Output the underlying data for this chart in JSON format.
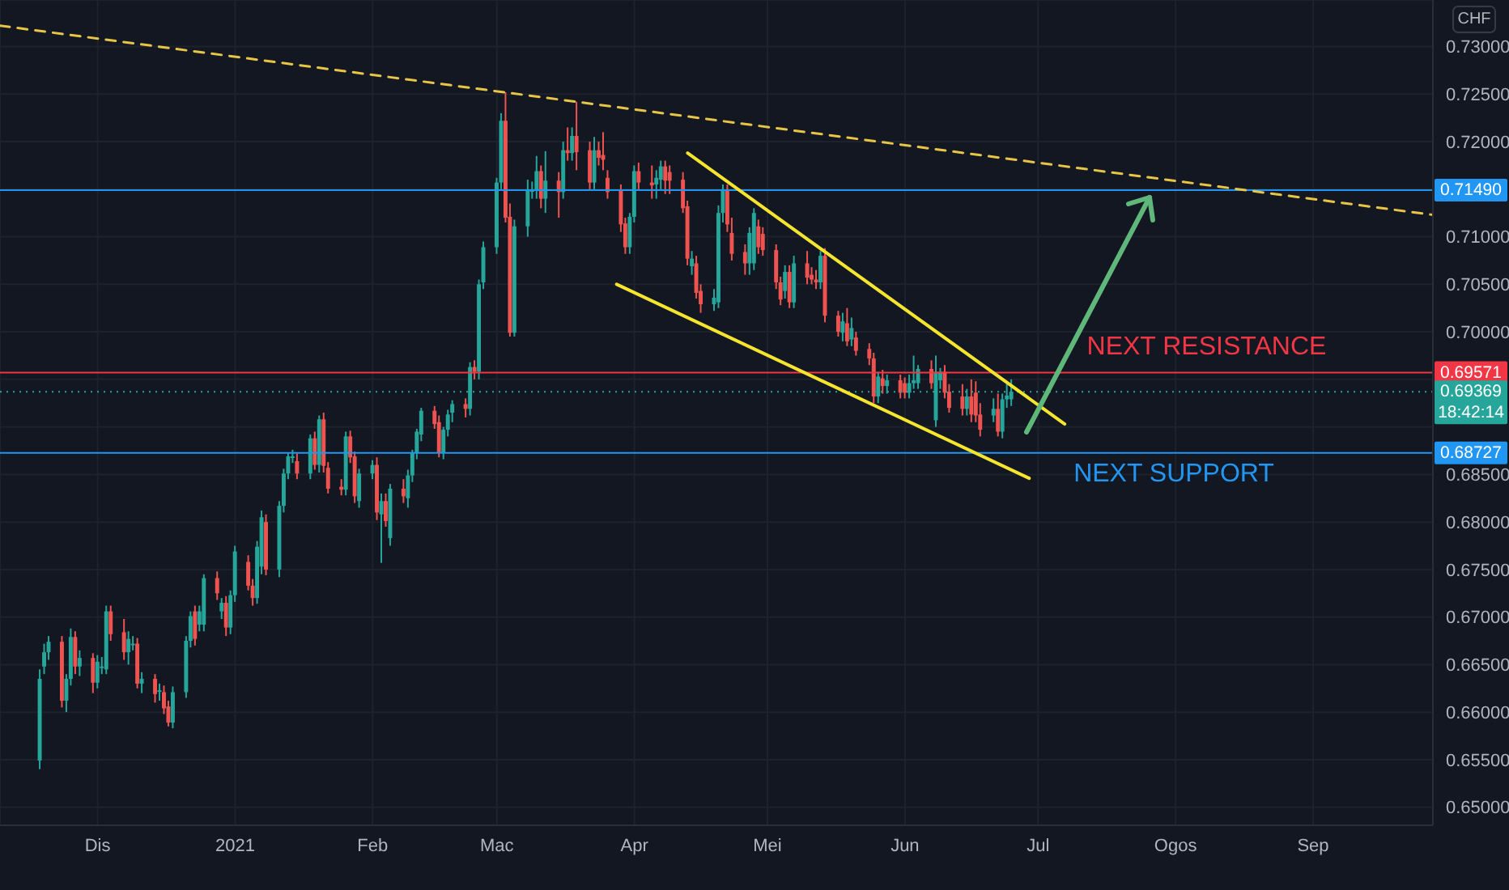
{
  "chart_data": {
    "type": "candlestick",
    "ylabel": "CHF",
    "xlim": [
      "2020-11-09",
      "2021-09-28"
    ],
    "xticks": [
      {
        "value": "2020-12-01",
        "label": "Dis"
      },
      {
        "value": "2021-01-01",
        "label": "2021"
      },
      {
        "value": "2021-02-01",
        "label": "Feb"
      },
      {
        "value": "2021-03-01",
        "label": "Mac"
      },
      {
        "value": "2021-04-01",
        "label": "Apr"
      },
      {
        "value": "2021-05-01",
        "label": "Mei"
      },
      {
        "value": "2021-06-01",
        "label": "Jun"
      },
      {
        "value": "2021-07-01",
        "label": "Jul"
      },
      {
        "value": "2021-08-01",
        "label": "Ogos"
      },
      {
        "value": "2021-09-01",
        "label": "Sep"
      }
    ],
    "ylim": [
      0.6481,
      0.7349
    ],
    "yticks": [
      {
        "value": 0.65,
        "label": "0.65000"
      },
      {
        "value": 0.655,
        "label": "0.65500"
      },
      {
        "value": 0.66,
        "label": "0.66000"
      },
      {
        "value": 0.665,
        "label": "0.66500"
      },
      {
        "value": 0.67,
        "label": "0.67000"
      },
      {
        "value": 0.675,
        "label": "0.67500"
      },
      {
        "value": 0.68,
        "label": "0.68000"
      },
      {
        "value": 0.685,
        "label": "0.68500"
      },
      {
        "value": 0.69,
        "label": null
      },
      {
        "value": 0.695,
        "label": null
      },
      {
        "value": 0.7,
        "label": "0.70000"
      },
      {
        "value": 0.705,
        "label": "0.70500"
      },
      {
        "value": 0.71,
        "label": "0.71000"
      },
      {
        "value": 0.715,
        "label": null
      },
      {
        "value": 0.72,
        "label": "0.72000"
      },
      {
        "value": 0.725,
        "label": "0.72500"
      },
      {
        "value": 0.73,
        "label": "0.73000"
      }
    ],
    "grid": true,
    "x": [
      "2020-11-18",
      "2020-11-19",
      "2020-11-20",
      "2020-11-23",
      "2020-11-24",
      "2020-11-25",
      "2020-11-26",
      "2020-11-27",
      "2020-11-30",
      "2020-12-01",
      "2020-12-02",
      "2020-12-03",
      "2020-12-04",
      "2020-12-07",
      "2020-12-08",
      "2020-12-09",
      "2020-12-10",
      "2020-12-11",
      "2020-12-14",
      "2020-12-15",
      "2020-12-16",
      "2020-12-17",
      "2020-12-18",
      "2020-12-21",
      "2020-12-22",
      "2020-12-23",
      "2020-12-24",
      "2020-12-25",
      "2020-12-28",
      "2020-12-29",
      "2020-12-30",
      "2020-12-31",
      "2021-01-01",
      "2021-01-04",
      "2021-01-05",
      "2021-01-06",
      "2021-01-07",
      "2021-01-08",
      "2021-01-11",
      "2021-01-12",
      "2021-01-13",
      "2021-01-14",
      "2021-01-15",
      "2021-01-18",
      "2021-01-19",
      "2021-01-20",
      "2021-01-21",
      "2021-01-22",
      "2021-01-25",
      "2021-01-26",
      "2021-01-27",
      "2021-01-28",
      "2021-01-29",
      "2021-02-01",
      "2021-02-02",
      "2021-02-03",
      "2021-02-04",
      "2021-02-05",
      "2021-02-08",
      "2021-02-09",
      "2021-02-10",
      "2021-02-11",
      "2021-02-12",
      "2021-02-15",
      "2021-02-16",
      "2021-02-17",
      "2021-02-18",
      "2021-02-19",
      "2021-02-22",
      "2021-02-23",
      "2021-02-24",
      "2021-02-25",
      "2021-02-26",
      "2021-03-01",
      "2021-03-02",
      "2021-03-03",
      "2021-03-04",
      "2021-03-05",
      "2021-03-08",
      "2021-03-09",
      "2021-03-10",
      "2021-03-11",
      "2021-03-12",
      "2021-03-15",
      "2021-03-16",
      "2021-03-17",
      "2021-03-18",
      "2021-03-19",
      "2021-03-22",
      "2021-03-23",
      "2021-03-24",
      "2021-03-25",
      "2021-03-26",
      "2021-03-29",
      "2021-03-30",
      "2021-03-31",
      "2021-04-01",
      "2021-04-02",
      "2021-04-05",
      "2021-04-06",
      "2021-04-07",
      "2021-04-08",
      "2021-04-09",
      "2021-04-12",
      "2021-04-13",
      "2021-04-14",
      "2021-04-15",
      "2021-04-16",
      "2021-04-19",
      "2021-04-20",
      "2021-04-21",
      "2021-04-22",
      "2021-04-23",
      "2021-04-26",
      "2021-04-27",
      "2021-04-28",
      "2021-04-29",
      "2021-04-30",
      "2021-05-03",
      "2021-05-04",
      "2021-05-05",
      "2021-05-06",
      "2021-05-07",
      "2021-05-10",
      "2021-05-11",
      "2021-05-12",
      "2021-05-13",
      "2021-05-14",
      "2021-05-17",
      "2021-05-18",
      "2021-05-19",
      "2021-05-20",
      "2021-05-21",
      "2021-05-24",
      "2021-05-25",
      "2021-05-26",
      "2021-05-27",
      "2021-05-28",
      "2021-05-31",
      "2021-06-01",
      "2021-06-02",
      "2021-06-03",
      "2021-06-04",
      "2021-06-07",
      "2021-06-08",
      "2021-06-09",
      "2021-06-10",
      "2021-06-11",
      "2021-06-14",
      "2021-06-15",
      "2021-06-16",
      "2021-06-17",
      "2021-06-18",
      "2021-06-21",
      "2021-06-22",
      "2021-06-23",
      "2021-06-24",
      "2021-06-25"
    ],
    "ohlc": [
      [
        0.6549,
        0.6645,
        0.654,
        0.6635
      ],
      [
        0.6648,
        0.6672,
        0.664,
        0.6663
      ],
      [
        0.6663,
        0.668,
        0.6655,
        0.6674
      ],
      [
        0.6674,
        0.668,
        0.6605,
        0.6612
      ],
      [
        0.6612,
        0.664,
        0.66,
        0.6635
      ],
      [
        0.6635,
        0.6688,
        0.6628,
        0.6679
      ],
      [
        0.6679,
        0.6685,
        0.664,
        0.6648
      ],
      [
        0.6648,
        0.6665,
        0.6638,
        0.6657
      ],
      [
        0.6657,
        0.6662,
        0.662,
        0.6631
      ],
      [
        0.6631,
        0.666,
        0.6625,
        0.6653
      ],
      [
        0.6648,
        0.6658,
        0.664,
        0.6648
      ],
      [
        0.6645,
        0.6712,
        0.664,
        0.6706
      ],
      [
        0.6706,
        0.6712,
        0.6675,
        0.6682
      ],
      [
        0.6684,
        0.6698,
        0.6655,
        0.6663
      ],
      [
        0.6663,
        0.6685,
        0.665,
        0.6677
      ],
      [
        0.6672,
        0.668,
        0.6665,
        0.6672
      ],
      [
        0.6672,
        0.6678,
        0.6625,
        0.663
      ],
      [
        0.663,
        0.6642,
        0.662,
        0.6635
      ],
      [
        0.6635,
        0.664,
        0.661,
        0.6619
      ],
      [
        0.6623,
        0.663,
        0.6612,
        0.6623
      ],
      [
        0.6621,
        0.6628,
        0.6598,
        0.6604
      ],
      [
        0.6606,
        0.6612,
        0.6585,
        0.6589
      ],
      [
        0.6589,
        0.6627,
        0.6583,
        0.6621
      ],
      [
        0.6621,
        0.668,
        0.6615,
        0.6675
      ],
      [
        0.6675,
        0.6706,
        0.6668,
        0.6701
      ],
      [
        0.6706,
        0.6712,
        0.667,
        0.6677
      ],
      [
        0.6692,
        0.6712,
        0.6685,
        0.6706
      ],
      [
        0.6692,
        0.6745,
        0.6685,
        0.6741
      ],
      [
        0.6741,
        0.6748,
        0.6718,
        0.6725
      ],
      [
        0.6706,
        0.672,
        0.6698,
        0.6715
      ],
      [
        0.6715,
        0.6722,
        0.668,
        0.6689
      ],
      [
        0.6689,
        0.6728,
        0.6682,
        0.6723
      ],
      [
        0.6723,
        0.6775,
        0.6716,
        0.6769
      ],
      [
        0.6758,
        0.6765,
        0.6728,
        0.6733
      ],
      [
        0.6733,
        0.674,
        0.6712,
        0.672
      ],
      [
        0.672,
        0.678,
        0.6714,
        0.6774
      ],
      [
        0.6753,
        0.6812,
        0.6745,
        0.6805
      ],
      [
        0.68,
        0.6808,
        0.6744,
        0.675
      ],
      [
        0.675,
        0.6822,
        0.6742,
        0.6817
      ],
      [
        0.6817,
        0.6856,
        0.681,
        0.6851
      ],
      [
        0.6851,
        0.6873,
        0.6845,
        0.6869
      ],
      [
        0.6869,
        0.6876,
        0.6862,
        0.6869
      ],
      [
        0.6864,
        0.6872,
        0.6845,
        0.6851
      ],
      [
        0.6851,
        0.6892,
        0.6845,
        0.6888
      ],
      [
        0.6888,
        0.6895,
        0.6855,
        0.686
      ],
      [
        0.686,
        0.6912,
        0.6852,
        0.6908
      ],
      [
        0.6908,
        0.6915,
        0.6852,
        0.6859
      ],
      [
        0.6857,
        0.6863,
        0.683,
        0.6835
      ],
      [
        0.6837,
        0.6845,
        0.6828,
        0.6834
      ],
      [
        0.6834,
        0.6895,
        0.6828,
        0.689
      ],
      [
        0.689,
        0.6896,
        0.6862,
        0.6868
      ],
      [
        0.6869,
        0.6874,
        0.682,
        0.6827
      ],
      [
        0.6822,
        0.6856,
        0.6815,
        0.6851
      ],
      [
        0.6851,
        0.6865,
        0.6845,
        0.686
      ],
      [
        0.686,
        0.6868,
        0.6802,
        0.681
      ],
      [
        0.6808,
        0.683,
        0.6757,
        0.6822
      ],
      [
        0.6822,
        0.683,
        0.6795,
        0.6801
      ],
      [
        0.6783,
        0.684,
        0.6775,
        0.6835
      ],
      [
        0.6835,
        0.6845,
        0.682,
        0.6827
      ],
      [
        0.6825,
        0.6855,
        0.6815,
        0.6849
      ],
      [
        0.6849,
        0.6876,
        0.6842,
        0.6873
      ],
      [
        0.6873,
        0.6898,
        0.6866,
        0.6895
      ],
      [
        0.6892,
        0.692,
        0.6885,
        0.6917
      ],
      [
        0.6917,
        0.6922,
        0.6898,
        0.6903
      ],
      [
        0.6905,
        0.6912,
        0.6868,
        0.6873
      ],
      [
        0.6873,
        0.69,
        0.6866,
        0.6897
      ],
      [
        0.6897,
        0.6918,
        0.689,
        0.6913
      ],
      [
        0.6915,
        0.6928,
        0.6905,
        0.6924
      ],
      [
        0.6924,
        0.693,
        0.691,
        0.6919
      ],
      [
        0.6919,
        0.6968,
        0.6912,
        0.6963
      ],
      [
        0.6963,
        0.697,
        0.695,
        0.6958
      ],
      [
        0.6958,
        0.7055,
        0.695,
        0.705
      ],
      [
        0.7052,
        0.7095,
        0.7045,
        0.7089
      ],
      [
        0.7089,
        0.7162,
        0.7082,
        0.7157
      ],
      [
        0.7157,
        0.723,
        0.715,
        0.7222
      ],
      [
        0.7222,
        0.7252,
        0.7115,
        0.712
      ],
      [
        0.7121,
        0.7135,
        0.6995,
        0.6999
      ],
      [
        0.6999,
        0.7118,
        0.6995,
        0.7111
      ],
      [
        0.7111,
        0.716,
        0.71,
        0.7149
      ],
      [
        0.7149,
        0.7158,
        0.714,
        0.7149
      ],
      [
        0.7149,
        0.7185,
        0.714,
        0.7169
      ],
      [
        0.7169,
        0.7175,
        0.713,
        0.714
      ],
      [
        0.714,
        0.719,
        0.7125,
        0.7159
      ],
      [
        0.7159,
        0.7168,
        0.712,
        0.7147
      ],
      [
        0.7147,
        0.72,
        0.714,
        0.7191
      ],
      [
        0.7191,
        0.7215,
        0.718,
        0.7188
      ],
      [
        0.7188,
        0.7215,
        0.718,
        0.7206
      ],
      [
        0.7206,
        0.7242,
        0.717,
        0.7189
      ],
      [
        0.7191,
        0.72,
        0.715,
        0.7157
      ],
      [
        0.7157,
        0.7205,
        0.715,
        0.7191
      ],
      [
        0.7191,
        0.72,
        0.7175,
        0.7183
      ],
      [
        0.7186,
        0.721,
        0.717,
        0.7181
      ],
      [
        0.7162,
        0.717,
        0.714,
        0.7147
      ],
      [
        0.7149,
        0.7155,
        0.7105,
        0.7113
      ],
      [
        0.7114,
        0.712,
        0.7082,
        0.7089
      ],
      [
        0.7089,
        0.7125,
        0.7082,
        0.7121
      ],
      [
        0.7121,
        0.7175,
        0.7115,
        0.7169
      ],
      [
        0.7169,
        0.7178,
        0.715,
        0.7157
      ],
      [
        0.7157,
        0.7175,
        0.714,
        0.7154
      ],
      [
        0.7155,
        0.717,
        0.714,
        0.7162
      ],
      [
        0.716,
        0.718,
        0.715,
        0.7174
      ],
      [
        0.7174,
        0.718,
        0.7145,
        0.7159
      ],
      [
        0.7168,
        0.7175,
        0.7145,
        0.7159
      ],
      [
        0.716,
        0.7168,
        0.7125,
        0.713
      ],
      [
        0.7132,
        0.7138,
        0.707,
        0.7077
      ],
      [
        0.7069,
        0.7085,
        0.706,
        0.7077
      ],
      [
        0.7072,
        0.708,
        0.7035,
        0.7041
      ],
      [
        0.7043,
        0.705,
        0.702,
        0.7029
      ],
      [
        0.7029,
        0.7045,
        0.7022,
        0.7036
      ],
      [
        0.7031,
        0.7133,
        0.7025,
        0.7125
      ],
      [
        0.7125,
        0.7155,
        0.7115,
        0.715
      ],
      [
        0.715,
        0.7155,
        0.7105,
        0.7113
      ],
      [
        0.7104,
        0.712,
        0.7075,
        0.7082
      ],
      [
        0.7084,
        0.7092,
        0.706,
        0.7072
      ],
      [
        0.7072,
        0.711,
        0.706,
        0.7104
      ],
      [
        0.7072,
        0.713,
        0.7065,
        0.7125
      ],
      [
        0.7111,
        0.7118,
        0.7082,
        0.7089
      ],
      [
        0.7103,
        0.711,
        0.708,
        0.7086
      ],
      [
        0.7086,
        0.7092,
        0.7045,
        0.7052
      ],
      [
        0.7052,
        0.7058,
        0.7028,
        0.7034
      ],
      [
        0.7043,
        0.707,
        0.7035,
        0.7063
      ],
      [
        0.7063,
        0.707,
        0.7025,
        0.7031
      ],
      [
        0.7031,
        0.708,
        0.7025,
        0.7072
      ],
      [
        0.7072,
        0.7085,
        0.705,
        0.7057
      ],
      [
        0.706,
        0.7068,
        0.705,
        0.7055
      ],
      [
        0.7055,
        0.7065,
        0.7045,
        0.7052
      ],
      [
        0.7052,
        0.7085,
        0.7045,
        0.708
      ],
      [
        0.708,
        0.7088,
        0.701,
        0.7017
      ],
      [
        0.7017,
        0.7022,
        0.6995,
        0.7
      ],
      [
        0.6999,
        0.702,
        0.699,
        0.7011
      ],
      [
        0.7009,
        0.7025,
        0.6985,
        0.699
      ],
      [
        0.6992,
        0.7015,
        0.6985,
        0.7004
      ],
      [
        0.6994,
        0.7,
        0.6975,
        0.698
      ],
      [
        0.6982,
        0.6988,
        0.6965,
        0.6972
      ],
      [
        0.6972,
        0.6978,
        0.6925,
        0.6932
      ],
      [
        0.6932,
        0.6958,
        0.6925,
        0.6953
      ],
      [
        0.6951,
        0.696,
        0.6935,
        0.6943
      ],
      [
        0.6943,
        0.6955,
        0.6935,
        0.6949
      ],
      [
        0.6949,
        0.6955,
        0.693,
        0.6936
      ],
      [
        0.6946,
        0.6952,
        0.693,
        0.6936
      ],
      [
        0.6936,
        0.6955,
        0.693,
        0.6946
      ],
      [
        0.6946,
        0.6975,
        0.694,
        0.6949
      ],
      [
        0.6946,
        0.6965,
        0.694,
        0.6961
      ],
      [
        0.6961,
        0.697,
        0.694,
        0.6946
      ],
      [
        0.6907,
        0.6975,
        0.69,
        0.6958
      ],
      [
        0.6949,
        0.6962,
        0.694,
        0.6958
      ],
      [
        0.6958,
        0.6965,
        0.693,
        0.6936
      ],
      [
        0.6937,
        0.6945,
        0.6915,
        0.692
      ],
      [
        0.6932,
        0.6945,
        0.6912,
        0.6919
      ],
      [
        0.6919,
        0.694,
        0.6912,
        0.6932
      ],
      [
        0.6932,
        0.695,
        0.6905,
        0.6913
      ],
      [
        0.6936,
        0.6948,
        0.6905,
        0.6912
      ],
      [
        0.6913,
        0.6925,
        0.689,
        0.6897
      ],
      [
        0.6912,
        0.693,
        0.6905,
        0.6919
      ],
      [
        0.6919,
        0.6935,
        0.689,
        0.6895
      ],
      [
        0.6895,
        0.6935,
        0.6888,
        0.6929
      ],
      [
        0.6929,
        0.6945,
        0.692,
        0.6933
      ],
      [
        0.6929,
        0.695,
        0.6922,
        0.6937
      ]
    ],
    "colors": [
      "#26a69a",
      "#26a69a",
      "#26a69a",
      "#ef5350",
      "#26a69a",
      "#26a69a",
      "#ef5350",
      "#26a69a",
      "#ef5350",
      "#26a69a",
      "#26a69a",
      "#26a69a",
      "#ef5350",
      "#ef5350",
      "#26a69a",
      "#26a69a",
      "#ef5350",
      "#26a69a",
      "#ef5350",
      "#26a69a",
      "#ef5350",
      "#ef5350",
      "#26a69a",
      "#26a69a",
      "#26a69a",
      "#ef5350",
      "#26a69a",
      "#26a69a",
      "#ef5350",
      "#26a69a",
      "#ef5350",
      "#26a69a",
      "#26a69a",
      "#ef5350",
      "#ef5350",
      "#26a69a",
      "#26a69a",
      "#ef5350",
      "#26a69a",
      "#26a69a",
      "#26a69a",
      "#26a69a",
      "#ef5350",
      "#26a69a",
      "#ef5350",
      "#26a69a",
      "#ef5350",
      "#ef5350",
      "#ef5350",
      "#26a69a",
      "#ef5350",
      "#ef5350",
      "#26a69a",
      "#26a69a",
      "#ef5350",
      "#26a69a",
      "#ef5350",
      "#26a69a",
      "#ef5350",
      "#26a69a",
      "#26a69a",
      "#26a69a",
      "#26a69a",
      "#ef5350",
      "#ef5350",
      "#26a69a",
      "#26a69a",
      "#26a69a",
      "#ef5350",
      "#26a69a",
      "#ef5350",
      "#26a69a",
      "#26a69a",
      "#26a69a",
      "#26a69a",
      "#ef5350",
      "#ef5350",
      "#26a69a",
      "#26a69a",
      "#26a69a",
      "#26a69a",
      "#ef5350",
      "#26a69a",
      "#ef5350",
      "#26a69a",
      "#ef5350",
      "#26a69a",
      "#ef5350",
      "#ef5350",
      "#26a69a",
      "#ef5350",
      "#ef5350",
      "#ef5350",
      "#ef5350",
      "#ef5350",
      "#26a69a",
      "#26a69a",
      "#ef5350",
      "#ef5350",
      "#26a69a",
      "#26a69a",
      "#ef5350",
      "#ef5350",
      "#ef5350",
      "#ef5350",
      "#26a69a",
      "#ef5350",
      "#ef5350",
      "#26a69a",
      "#26a69a",
      "#26a69a",
      "#ef5350",
      "#ef5350",
      "#ef5350",
      "#26a69a",
      "#26a69a",
      "#ef5350",
      "#ef5350",
      "#ef5350",
      "#ef5350",
      "#26a69a",
      "#ef5350",
      "#26a69a",
      "#ef5350",
      "#ef5350",
      "#ef5350",
      "#26a69a",
      "#ef5350",
      "#ef5350",
      "#26a69a",
      "#ef5350",
      "#26a69a",
      "#ef5350",
      "#ef5350",
      "#ef5350",
      "#26a69a",
      "#ef5350",
      "#26a69a",
      "#ef5350",
      "#ef5350",
      "#26a69a",
      "#26a69a",
      "#26a69a",
      "#ef5350",
      "#26a69a",
      "#26a69a",
      "#ef5350",
      "#ef5350",
      "#ef5350",
      "#26a69a",
      "#ef5350",
      "#ef5350",
      "#ef5350",
      "#26a69a",
      "#ef5350",
      "#26a69a",
      "#26a69a",
      "#26a69a"
    ],
    "series": [
      {
        "type": "line",
        "x": [
          "2020-11-09",
          "2021-09-28"
        ],
        "values": [
          0.7322,
          0.7123
        ],
        "color": "#e8c547",
        "line_style": "dashed"
      },
      {
        "type": "line",
        "x": [
          "2021-04-13",
          "2021-07-07"
        ],
        "values": [
          0.7188,
          0.6903
        ],
        "color": "#f5e52e",
        "line_style": "solid"
      },
      {
        "type": "line",
        "x": [
          "2021-03-28",
          "2021-06-29"
        ],
        "values": [
          0.705,
          0.6846
        ],
        "color": "#f5e52e",
        "line_style": "solid"
      }
    ],
    "ref_lines": [
      {
        "axis": "y",
        "value": 0.7149,
        "label": "0.71490",
        "color": "#2196f3"
      },
      {
        "axis": "y",
        "value": 0.69571,
        "label": "0.69571",
        "color": "#f23645"
      },
      {
        "axis": "y",
        "value": 0.69369,
        "label": "0.69369",
        "color": "#26a69a",
        "line_style": "dotted"
      },
      {
        "axis": "y",
        "value": 0.68727,
        "label": "0.68727",
        "color": "#2196f3"
      }
    ],
    "annotations": [
      {
        "text": "NEXT RESISTANCE",
        "x": "2021-07-12",
        "y": 0.69571
      },
      {
        "text": "NEXT SUPPORT",
        "x": "2021-07-09",
        "y": 0.68727
      },
      "18:42:14"
    ]
  }
}
